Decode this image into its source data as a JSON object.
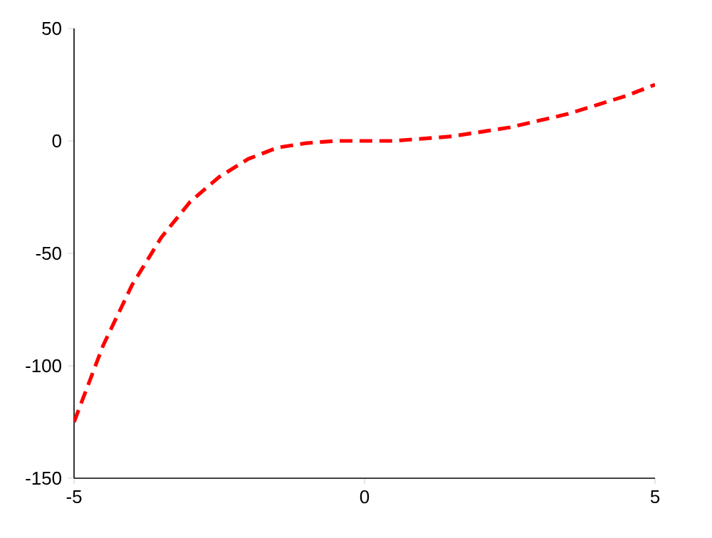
{
  "chart_data": {
    "type": "line",
    "x": [
      -5,
      -4.5,
      -4,
      -3.5,
      -3,
      -2.5,
      -2,
      -1.5,
      -1,
      -0.5,
      0,
      0.5,
      1,
      1.5,
      2,
      2.5,
      3,
      3.5,
      4,
      4.5,
      5
    ],
    "series": [
      {
        "color": "#ff0000",
        "values": [
          -125,
          -91,
          -64,
          -43,
          -27,
          -16,
          -8,
          -3,
          -1,
          0,
          0,
          0,
          1,
          2,
          4,
          6,
          9,
          12,
          16,
          20,
          25
        ]
      }
    ],
    "xlim": [
      -5,
      5
    ],
    "ylim": [
      -150,
      50
    ],
    "xticks": [
      -5,
      0,
      5
    ],
    "yticks": [
      -150,
      -100,
      -50,
      0,
      50
    ],
    "line_style": "dashed",
    "marker": "none",
    "grid": false
  }
}
